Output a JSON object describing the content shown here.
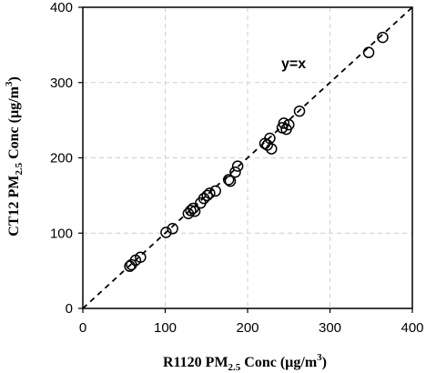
{
  "chart_data": {
    "type": "scatter",
    "xlabel": {
      "pre": "R1120 PM",
      "sub": "2.5",
      "post": " Conc (µg/m",
      "sup": "3",
      "end": ")"
    },
    "ylabel": {
      "pre": "CT12 PM",
      "sub": "2.5",
      "post": " Conc (µg/m",
      "sup": "3",
      "end": ")"
    },
    "xlim": [
      0,
      400
    ],
    "ylim": [
      0,
      400
    ],
    "xticks": [
      0,
      100,
      200,
      300,
      400
    ],
    "yticks": [
      0,
      100,
      200,
      300,
      400
    ],
    "grid": true,
    "reference_line": {
      "label": "y=x",
      "slope": 1,
      "intercept": 0,
      "style": "dashed"
    },
    "points": [
      {
        "x": 57,
        "y": 56
      },
      {
        "x": 59,
        "y": 58
      },
      {
        "x": 64,
        "y": 64
      },
      {
        "x": 70,
        "y": 68
      },
      {
        "x": 101,
        "y": 101
      },
      {
        "x": 109,
        "y": 106
      },
      {
        "x": 128,
        "y": 126
      },
      {
        "x": 131,
        "y": 130
      },
      {
        "x": 134,
        "y": 133
      },
      {
        "x": 136,
        "y": 129
      },
      {
        "x": 143,
        "y": 140
      },
      {
        "x": 147,
        "y": 146
      },
      {
        "x": 151,
        "y": 150
      },
      {
        "x": 154,
        "y": 153
      },
      {
        "x": 161,
        "y": 156
      },
      {
        "x": 177,
        "y": 171
      },
      {
        "x": 179,
        "y": 169
      },
      {
        "x": 185,
        "y": 181
      },
      {
        "x": 188,
        "y": 189
      },
      {
        "x": 221,
        "y": 219
      },
      {
        "x": 224,
        "y": 217
      },
      {
        "x": 227,
        "y": 226
      },
      {
        "x": 229,
        "y": 212
      },
      {
        "x": 242,
        "y": 240
      },
      {
        "x": 244,
        "y": 246
      },
      {
        "x": 247,
        "y": 238
      },
      {
        "x": 250,
        "y": 244
      },
      {
        "x": 263,
        "y": 262
      },
      {
        "x": 347,
        "y": 340
      },
      {
        "x": 364,
        "y": 360
      }
    ]
  }
}
